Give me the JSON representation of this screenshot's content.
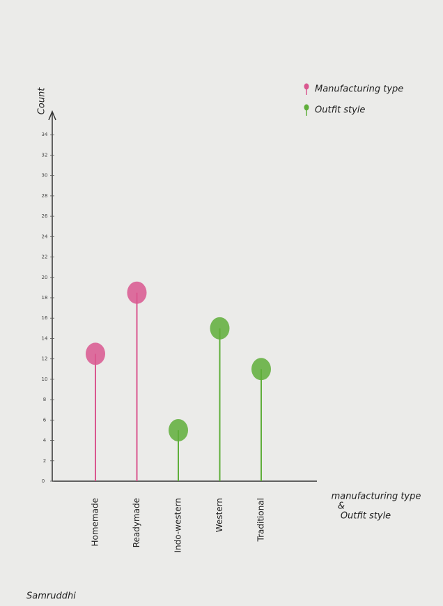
{
  "chart_data": {
    "type": "lollipop",
    "y_label": "Count",
    "x_label": [
      "manufacturing type",
      "&",
      "Outfit style"
    ],
    "annotation": "Samruddhi",
    "categories": [
      "Homemade",
      "Readymade",
      "Indo-western",
      "Western",
      "Traditional"
    ],
    "series": [
      {
        "name": "Manufacturing type",
        "color": "#d9578f",
        "values": [
          12.5,
          18.5,
          null,
          null,
          null
        ]
      },
      {
        "name": "Outfit style",
        "color": "#5fae3a",
        "values": [
          null,
          null,
          5,
          15,
          11
        ]
      }
    ],
    "ylim": [
      0,
      36
    ],
    "yticks": [
      0,
      2,
      4,
      6,
      8,
      10,
      12,
      14,
      16,
      18,
      20,
      22,
      24,
      26,
      28,
      30,
      32,
      34
    ],
    "grid": false,
    "legend": "upper right"
  }
}
